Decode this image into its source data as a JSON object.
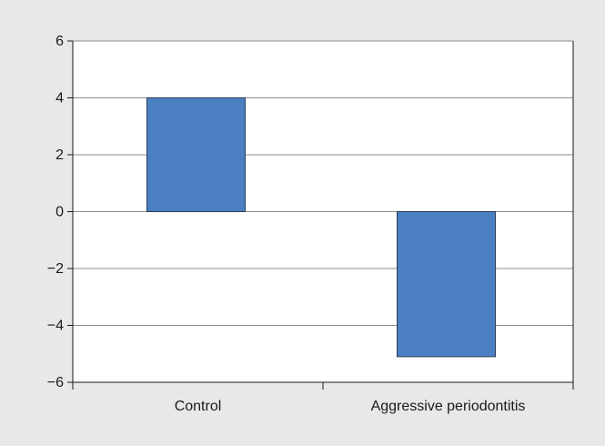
{
  "chart_data": {
    "type": "bar",
    "title": "",
    "xlabel": "",
    "ylabel": "",
    "categories": [
      "Control",
      "Aggressive periodontitis"
    ],
    "values": [
      4.0,
      -5.1
    ],
    "ylim": [
      -6,
      6
    ],
    "yticks": [
      6,
      4,
      2,
      0,
      -2,
      -4,
      -6
    ],
    "ytick_labels": [
      "6",
      "4",
      "2",
      "0",
      "−2",
      "−4",
      "−6"
    ],
    "grid": true,
    "legend": "none",
    "colors": {
      "bar_fill": "#4a7fc1",
      "bar_stroke": "#2d3e55",
      "gridline": "#8c8c8c",
      "axis": "#1a1a1a",
      "plot_background": "#ffffff",
      "figure_background": "#e8e8e8"
    }
  }
}
